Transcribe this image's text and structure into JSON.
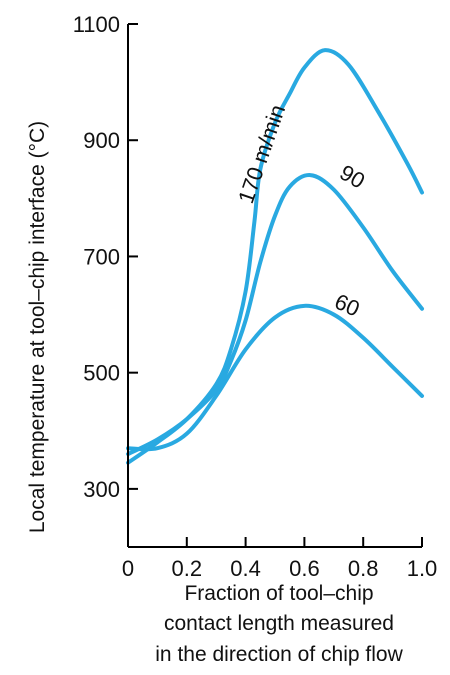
{
  "chart_data": {
    "type": "line",
    "xlabel": [
      "Fraction of tool–chip",
      "contact length measured",
      "in the direction of chip flow"
    ],
    "ylabel": "Local temperature at tool–chip interface (°C)",
    "xlim": [
      0,
      1.0
    ],
    "ylim": [
      200,
      1100
    ],
    "x_ticks": [
      "0",
      "0.2",
      "0.4",
      "0.6",
      "0.8",
      "1.0"
    ],
    "y_ticks": [
      "300",
      "500",
      "700",
      "900",
      "1100"
    ],
    "grid": false,
    "series": [
      {
        "name": "170 m/min",
        "color": "#29a9e1",
        "x": [
          0,
          0.1,
          0.2,
          0.3,
          0.35,
          0.4,
          0.43,
          0.45,
          0.5,
          0.55,
          0.6,
          0.67,
          0.75,
          0.85,
          0.95,
          1.0
        ],
        "y": [
          345,
          380,
          420,
          480,
          540,
          640,
          760,
          850,
          930,
          980,
          1025,
          1055,
          1030,
          950,
          860,
          810
        ]
      },
      {
        "name": "90",
        "color": "#29a9e1",
        "x": [
          0,
          0.1,
          0.2,
          0.3,
          0.35,
          0.4,
          0.45,
          0.5,
          0.55,
          0.62,
          0.7,
          0.8,
          0.9,
          1.0
        ],
        "y": [
          360,
          385,
          420,
          470,
          520,
          590,
          690,
          770,
          820,
          840,
          815,
          750,
          675,
          610
        ]
      },
      {
        "name": "60",
        "color": "#29a9e1",
        "x": [
          0,
          0.1,
          0.2,
          0.3,
          0.4,
          0.5,
          0.6,
          0.7,
          0.8,
          0.9,
          1.0
        ],
        "y": [
          370,
          370,
          395,
          460,
          540,
          595,
          615,
          600,
          560,
          510,
          460
        ]
      }
    ]
  }
}
